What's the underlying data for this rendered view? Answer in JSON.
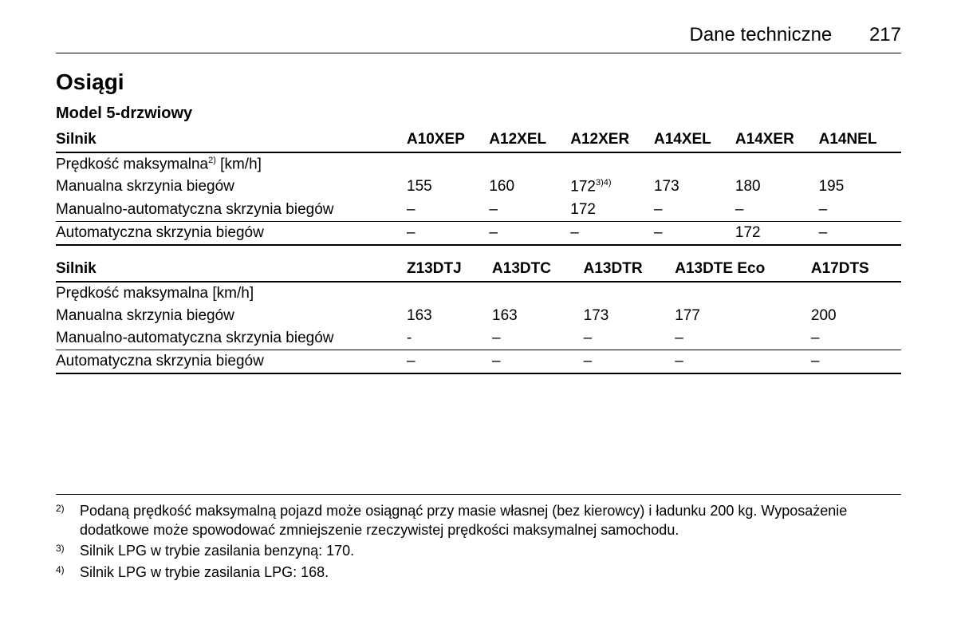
{
  "header": {
    "section": "Dane techniczne",
    "page": "217"
  },
  "title": "Osiągi",
  "subtitle": "Model 5-drzwiowy",
  "table1": {
    "rowHeader": "Silnik",
    "cols": [
      "A10XEP",
      "A12XEL",
      "A12XER",
      "A14XEL",
      "A14XER",
      "A14NEL"
    ],
    "speedHeader": "Prędkość maksymalna",
    "speedSup": "2)",
    "speedUnit": " [km/h]",
    "rows": [
      {
        "label": "Manualna skrzynia biegów",
        "vals": [
          "155",
          "160",
          "172",
          "173",
          "180",
          "195"
        ],
        "sup2": "3)4)"
      },
      {
        "label": "Manualno-automatyczna skrzynia biegów",
        "vals": [
          "–",
          "–",
          "172",
          "–",
          "–",
          "–"
        ]
      },
      {
        "label": "Automatyczna skrzynia biegów",
        "vals": [
          "–",
          "–",
          "–",
          "–",
          "172",
          "–"
        ]
      }
    ]
  },
  "table2": {
    "rowHeader": "Silnik",
    "cols": [
      "Z13DTJ",
      "A13DTC",
      "A13DTR",
      "A13DTE Eco",
      "A17DTS"
    ],
    "speedHeader": "Prędkość maksymalna [km/h]",
    "rows": [
      {
        "label": "Manualna skrzynia biegów",
        "vals": [
          "163",
          "163",
          "173",
          "177",
          "200"
        ]
      },
      {
        "label": "Manualno-automatyczna skrzynia biegów",
        "vals": [
          "-",
          "–",
          "–",
          "–",
          "–"
        ]
      },
      {
        "label": "Automatyczna skrzynia biegów",
        "vals": [
          "–",
          "–",
          "–",
          "–",
          "–"
        ]
      }
    ]
  },
  "footnotes": [
    {
      "mark": "2)",
      "text": "Podaną prędkość maksymalną pojazd może osiągnąć przy masie własnej (bez kierowcy) i ładunku 200 kg. Wyposażenie dodatkowe może spowodować zmniejszenie rzeczywistej prędkości maksymalnej samochodu."
    },
    {
      "mark": "3)",
      "text": "Silnik LPG w trybie zasilania benzyną: 170."
    },
    {
      "mark": "4)",
      "text": "Silnik LPG w trybie zasilania LPG: 168."
    }
  ]
}
